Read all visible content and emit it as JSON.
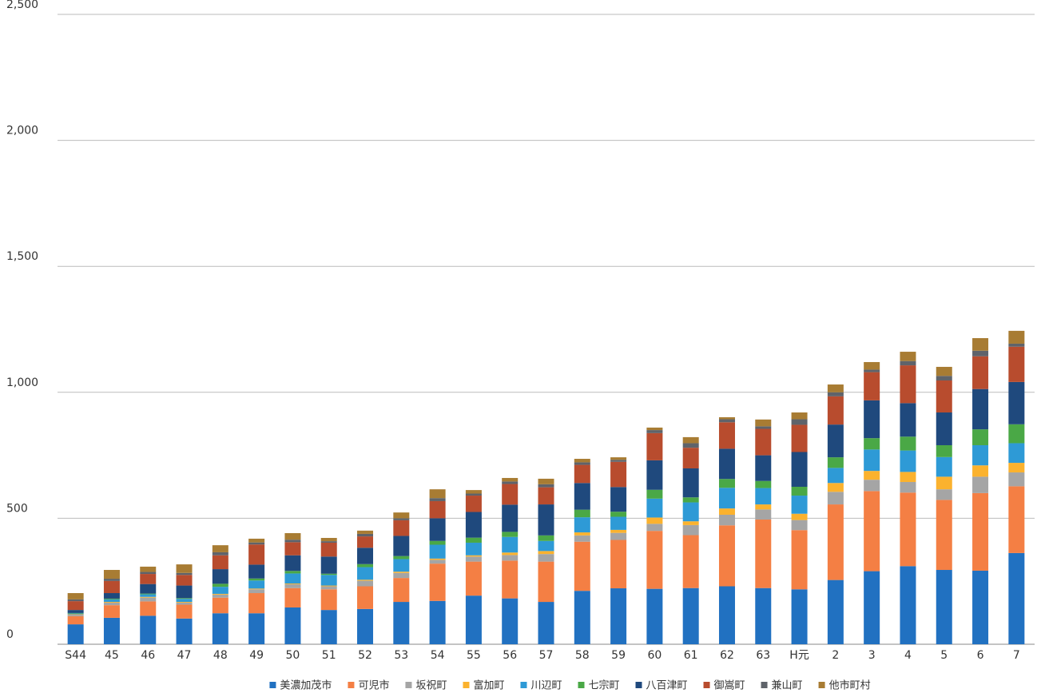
{
  "chart_data": {
    "type": "stacked_bar",
    "categories": [
      "S44",
      "45",
      "46",
      "47",
      "48",
      "49",
      "50",
      "51",
      "52",
      "53",
      "54",
      "55",
      "56",
      "57",
      "58",
      "59",
      "60",
      "61",
      "62",
      "63",
      "H元",
      "2",
      "3",
      "4",
      "5",
      "6",
      "7"
    ],
    "series": [
      {
        "name": "美濃加茂市",
        "color": "#2171c1",
        "values": [
          79,
          105,
          113,
          102,
          123,
          123,
          146,
          136,
          140,
          168,
          172,
          193,
          182,
          168,
          212,
          222,
          220,
          223,
          230,
          223,
          218,
          255,
          290,
          310,
          295,
          292,
          362
        ]
      },
      {
        "name": "可児市",
        "color": "#f47f44",
        "values": [
          32,
          50,
          57,
          55,
          62,
          80,
          77,
          82,
          90,
          95,
          148,
          135,
          150,
          160,
          195,
          192,
          230,
          210,
          242,
          272,
          235,
          300,
          318,
          292,
          278,
          308,
          265
        ]
      },
      {
        "name": "坂祝町",
        "color": "#a5a5a5",
        "values": [
          6,
          10,
          15,
          8,
          12,
          15,
          15,
          12,
          22,
          20,
          15,
          20,
          22,
          30,
          25,
          28,
          28,
          40,
          42,
          40,
          40,
          50,
          45,
          42,
          42,
          65,
          55
        ]
      },
      {
        "name": "富加町",
        "color": "#fbb22e",
        "values": [
          2,
          3,
          3,
          3,
          3,
          3,
          3,
          3,
          4,
          5,
          5,
          5,
          10,
          12,
          12,
          12,
          25,
          15,
          25,
          20,
          25,
          35,
          35,
          40,
          50,
          45,
          38
        ]
      },
      {
        "name": "川辺町",
        "color": "#2e9ad6",
        "values": [
          3,
          10,
          10,
          12,
          28,
          32,
          40,
          42,
          50,
          50,
          55,
          50,
          62,
          40,
          60,
          52,
          75,
          75,
          82,
          65,
          72,
          60,
          85,
          85,
          78,
          80,
          78
        ]
      },
      {
        "name": "七宗町",
        "color": "#4aa846",
        "values": [
          2,
          3,
          3,
          3,
          12,
          8,
          10,
          5,
          12,
          12,
          15,
          20,
          20,
          22,
          30,
          20,
          35,
          20,
          35,
          28,
          35,
          42,
          45,
          55,
          47,
          63,
          75
        ]
      },
      {
        "name": "八百津町",
        "color": "#1f497d",
        "values": [
          12,
          22,
          38,
          50,
          58,
          55,
          62,
          68,
          65,
          80,
          90,
          102,
          108,
          123,
          106,
          98,
          117,
          115,
          120,
          102,
          138,
          130,
          150,
          133,
          130,
          160,
          168
        ]
      },
      {
        "name": "御嵩町",
        "color": "#b84c2e",
        "values": [
          35,
          48,
          40,
          42,
          55,
          80,
          52,
          55,
          45,
          62,
          68,
          65,
          82,
          68,
          72,
          100,
          108,
          82,
          105,
          105,
          108,
          112,
          112,
          150,
          127,
          130,
          140
        ]
      },
      {
        "name": "兼山町",
        "color": "#5f636a",
        "values": [
          7,
          9,
          8,
          8,
          12,
          8,
          10,
          6,
          10,
          8,
          12,
          8,
          10,
          12,
          10,
          8,
          12,
          18,
          12,
          10,
          22,
          16,
          10,
          17,
          18,
          22,
          12
        ]
      },
      {
        "name": "他市町村",
        "color": "#a87c33",
        "values": [
          25,
          35,
          21,
          34,
          28,
          15,
          26,
          13,
          13,
          23,
          35,
          14,
          14,
          22,
          14,
          10,
          10,
          24,
          8,
          27,
          27,
          31,
          30,
          37,
          36,
          50,
          51
        ]
      }
    ],
    "ylim": [
      0,
      2500
    ],
    "yticks": [
      0,
      500,
      {
        "value": 1000,
        "label": "1,000"
      },
      {
        "value": 1500,
        "label": "1,500"
      },
      {
        "value": 2000,
        "label": "2,000"
      },
      {
        "value": 2500,
        "label": "2,500"
      }
    ],
    "grid": true,
    "legend": "bottom"
  }
}
